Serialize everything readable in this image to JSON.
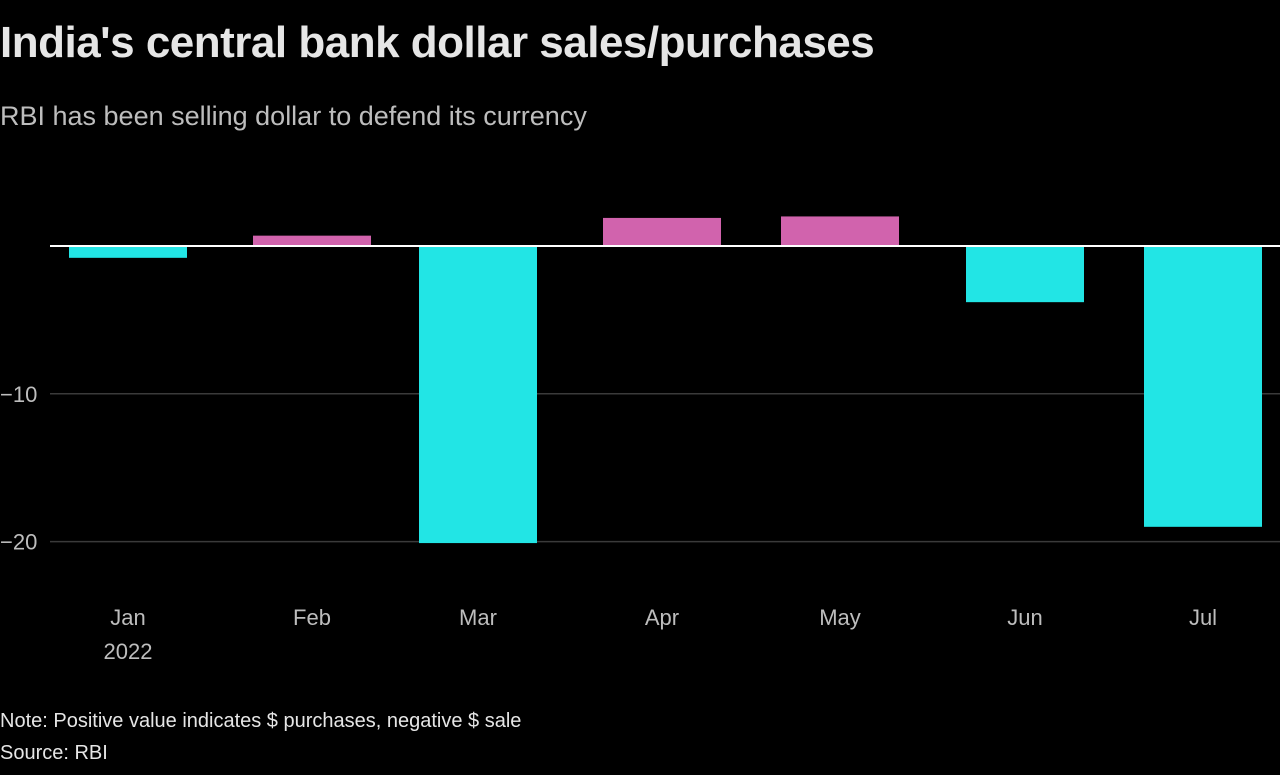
{
  "title": "India's central bank dollar sales/purchases",
  "subtitle": "RBI has been selling dollar to defend its currency",
  "note": "Note: Positive value indicates $ purchases, negative $ sale",
  "source": "Source: RBI",
  "colors": {
    "positive": "#d163ad",
    "negative": "#22e5e5",
    "background": "#000000",
    "zero_line": "#ffffff",
    "grid": "#3a3a3a",
    "text": "#bdbdbd"
  },
  "chart_data": {
    "type": "bar",
    "categories": [
      "Jan",
      "Feb",
      "Mar",
      "Apr",
      "May",
      "Jun",
      "Jul"
    ],
    "category_sublabels": [
      "2022",
      "",
      "",
      "",
      "",
      "",
      ""
    ],
    "values": [
      -0.8,
      0.7,
      -20.1,
      1.9,
      2.0,
      -3.8,
      -19.0
    ],
    "y_ticks": [
      -10,
      -20
    ],
    "y_tick_labels": [
      "−10",
      "−20"
    ],
    "ylim": [
      -22,
      4
    ],
    "grid": true,
    "legend": "none"
  }
}
